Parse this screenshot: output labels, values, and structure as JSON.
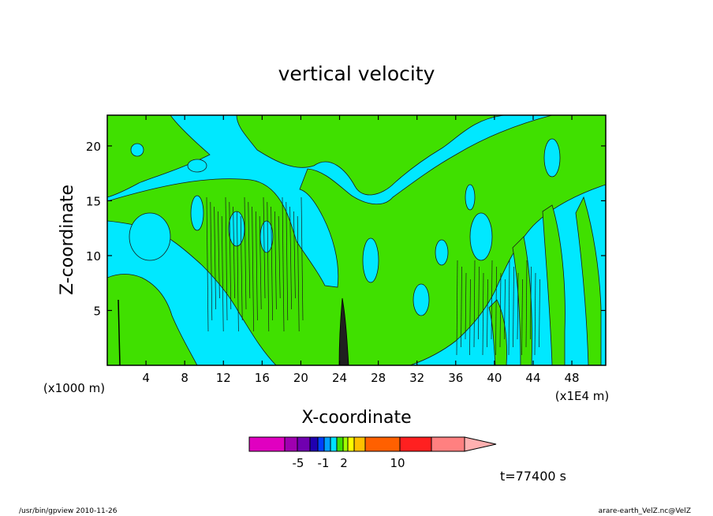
{
  "chart_data": {
    "type": "heatmap",
    "title": "vertical velocity",
    "xlabel": "X-coordinate",
    "ylabel": "Z-coordinate",
    "x_multiplier_label": "(x1000 m)",
    "x_range_label": "(x1E4 m)",
    "xlim": [
      0,
      51.5
    ],
    "ylim": [
      0,
      22.8
    ],
    "xticks": [
      4,
      8,
      12,
      16,
      20,
      24,
      28,
      32,
      36,
      40,
      44,
      48
    ],
    "yticks": [
      5,
      10,
      15,
      20
    ],
    "colorbar": {
      "tick_labels": [
        {
          "value": -5,
          "label": "-5"
        },
        {
          "value": -1,
          "label": "-1"
        },
        {
          "value": 2,
          "label": "2"
        },
        {
          "value": 10,
          "label": "10"
        }
      ],
      "colors": [
        "#e000c0",
        "#a000b0",
        "#7000b0",
        "#2000b0",
        "#0040ff",
        "#00a0ff",
        "#00e0ff",
        "#40e000",
        "#a0ff00",
        "#ffff00",
        "#ffc000",
        "#ff6000",
        "#ff2020",
        "#ff8080",
        "#ffb0b0"
      ]
    },
    "field_colors": {
      "negative": "#00e8ff",
      "positive": "#40e000"
    },
    "time_label": "t=77400 s"
  },
  "footer": {
    "left": "/usr/bin/gpview  2010-11-26",
    "right": "arare-earth_VelZ.nc@VelZ"
  }
}
